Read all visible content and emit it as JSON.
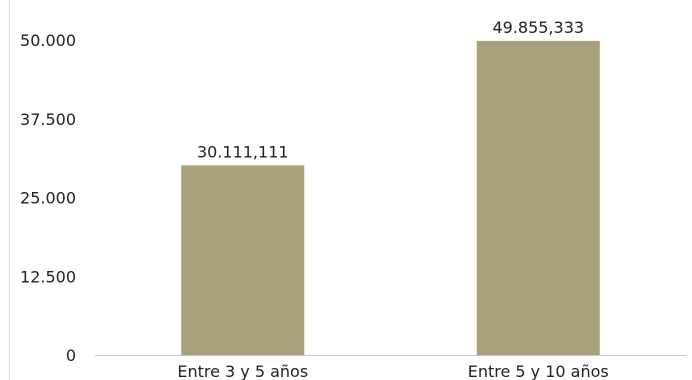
{
  "chart_data": {
    "type": "bar",
    "categories": [
      "Entre 3 y 5 años",
      "Entre 5 y 10 años"
    ],
    "values": [
      30111.111,
      49855.333
    ],
    "value_labels": [
      "30.111,111",
      "49.855,333"
    ],
    "yticks": [
      0,
      12500,
      25000,
      37500,
      50000
    ],
    "ytick_labels": [
      "0",
      "12.500",
      "25.000",
      "37.500",
      "50.000"
    ],
    "ylim": [
      0,
      50000
    ],
    "title": "",
    "xlabel": "",
    "ylabel": "",
    "grid": false,
    "colors": {
      "bar": "#a7a07b",
      "axis": "#c8c8c8",
      "text": "#222222"
    }
  }
}
